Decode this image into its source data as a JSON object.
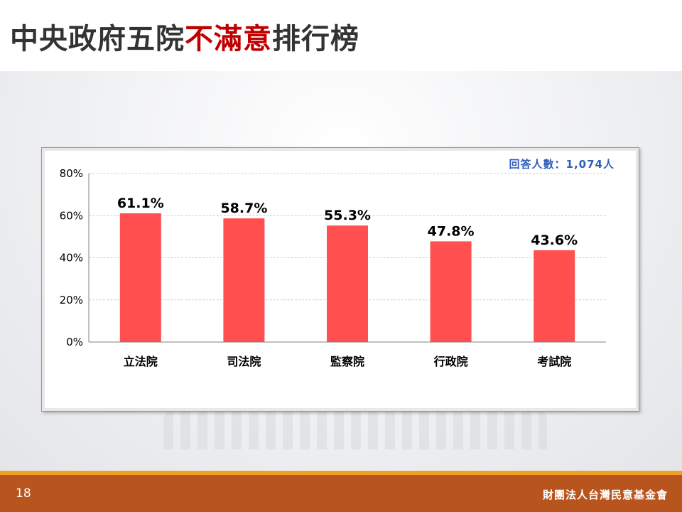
{
  "slide": {
    "title_part1": "中央政府五院",
    "title_highlight": "不滿意",
    "title_part2": "排行榜",
    "page_number": "18",
    "organization": "財團法人台灣民意基金會",
    "respondents": "回答人數：1,074人"
  },
  "colors": {
    "bar": "#ff4f4f",
    "title_highlight": "#c00000",
    "footer": "#b8541e",
    "accent_line": "#f0a020",
    "respondents_text": "#2e5eb8"
  },
  "chart_data": {
    "type": "bar",
    "title": "",
    "xlabel": "",
    "ylabel": "",
    "categories": [
      "立法院",
      "司法院",
      "監察院",
      "行政院",
      "考試院"
    ],
    "values": [
      61.1,
      58.7,
      55.3,
      47.8,
      43.6
    ],
    "data_labels": [
      "61.1%",
      "58.7%",
      "55.3%",
      "47.8%",
      "43.6%"
    ],
    "ylim": [
      0,
      80
    ],
    "yticks": [
      0,
      20,
      40,
      60,
      80
    ],
    "ytick_labels": [
      "0%",
      "20%",
      "40%",
      "60%",
      "80%"
    ],
    "grid": true,
    "legend": "none"
  }
}
